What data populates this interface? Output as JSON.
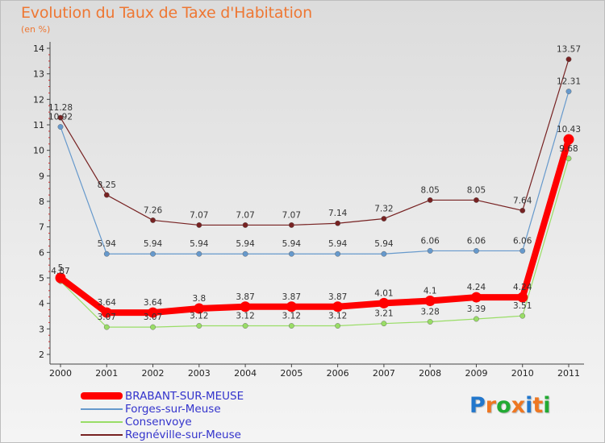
{
  "title": "Evolution du Taux de Taxe d'Habitation",
  "subtitle": "(en %)",
  "logo": {
    "letters": [
      "P",
      "r",
      "o",
      "x",
      "i",
      "t",
      "i"
    ],
    "colors": [
      "#2277cc",
      "#ee7722",
      "#22aa33",
      "#ee7722",
      "#2277cc",
      "#ee7722",
      "#22aa33"
    ]
  },
  "chart_data": {
    "type": "line",
    "x": [
      "2000",
      "2001",
      "2002",
      "2003",
      "2004",
      "2005",
      "2006",
      "2007",
      "2008",
      "2009",
      "2010",
      "2011"
    ],
    "ylim": [
      2,
      14
    ],
    "yticks": [
      "2",
      "3",
      "4",
      "5",
      "6",
      "7",
      "8",
      "9",
      "10",
      "11",
      "12",
      "13",
      "14"
    ],
    "grid": false,
    "legend_position": "bottom-left",
    "series": [
      {
        "name": "BRABANT-SUR-MEUSE",
        "color": "#ff0000",
        "values": [
          5,
          3.64,
          3.64,
          3.8,
          3.87,
          3.87,
          3.87,
          4.01,
          4.1,
          4.24,
          4.24,
          10.43
        ],
        "labels": [
          "5",
          "3.64",
          "3.64",
          "3.8",
          "3.87",
          "3.87",
          "3.87",
          "4.01",
          "4.1",
          "4.24",
          "4.24",
          "10.43"
        ]
      },
      {
        "name": "Forges-sur-Meuse",
        "color": "#6699cc",
        "values": [
          10.92,
          5.94,
          5.94,
          5.94,
          5.94,
          5.94,
          5.94,
          5.94,
          6.06,
          6.06,
          6.06,
          12.31
        ],
        "labels": [
          "10.92",
          "5.94",
          "5.94",
          "5.94",
          "5.94",
          "5.94",
          "5.94",
          "5.94",
          "6.06",
          "6.06",
          "6.06",
          "12.31"
        ]
      },
      {
        "name": "Consenvoye",
        "color": "#99dd66",
        "values": [
          4.87,
          3.07,
          3.07,
          3.12,
          3.12,
          3.12,
          3.12,
          3.21,
          3.28,
          3.39,
          3.51,
          9.68
        ],
        "labels": [
          "4.87",
          "3.07",
          "3.07",
          "3.12",
          "3.12",
          "3.12",
          "3.12",
          "3.21",
          "3.28",
          "3.39",
          "3.51",
          "9.68"
        ]
      },
      {
        "name": "Regnéville-sur-Meuse",
        "color": "#772222",
        "values": [
          11.28,
          8.25,
          7.26,
          7.07,
          7.07,
          7.07,
          7.14,
          7.32,
          8.05,
          8.05,
          7.64,
          13.57
        ],
        "labels": [
          "11.28",
          "8.25",
          "7.26",
          "7.07",
          "7.07",
          "7.07",
          "7.14",
          "7.32",
          "8.05",
          "8.05",
          "7.64",
          "13.57"
        ]
      }
    ]
  }
}
